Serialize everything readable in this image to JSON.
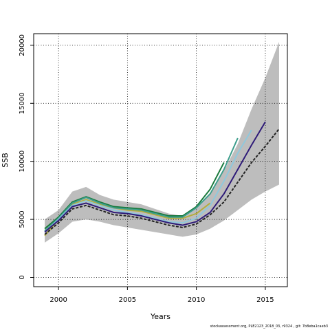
{
  "chart_data": {
    "type": "line",
    "title": "",
    "xlabel": "Years",
    "ylabel": "SSB",
    "xlim": [
      1998.2,
      2016.6
    ],
    "ylim": [
      -800,
      21000
    ],
    "xticks": [
      2000,
      2005,
      2010,
      2015
    ],
    "yticks": [
      0,
      5000,
      10000,
      15000,
      20000
    ],
    "grid": true,
    "confidence_band": {
      "x": [
        1999,
        2000,
        2001,
        2002,
        2003,
        2004,
        2005,
        2006,
        2007,
        2008,
        2009,
        2010,
        2011,
        2012,
        2013,
        2014,
        2015,
        2016
      ],
      "lower": [
        3000,
        3800,
        4800,
        5000,
        4800,
        4500,
        4300,
        4100,
        3900,
        3700,
        3500,
        3700,
        4200,
        4900,
        5800,
        6700,
        7400,
        8000
      ],
      "upper": [
        5000,
        5800,
        7400,
        7800,
        7100,
        6700,
        6500,
        6300,
        5900,
        5500,
        5300,
        6000,
        7300,
        9200,
        11500,
        14500,
        17200,
        20300
      ]
    },
    "series": [
      {
        "color": "#1b7a3d",
        "style": "solid",
        "x": [
          1999,
          2000,
          2001,
          2002,
          2003,
          2004,
          2005,
          2006,
          2007,
          2008,
          2009,
          2010,
          2011,
          2012
        ],
        "values": [
          4200,
          5200,
          6500,
          6950,
          6500,
          6100,
          6000,
          5900,
          5600,
          5300,
          5300,
          6100,
          7600,
          9900
        ]
      },
      {
        "color": "#b3ad3d",
        "style": "solid",
        "x": [
          1999,
          2000,
          2001,
          2002,
          2003,
          2004,
          2005,
          2006,
          2007,
          2008,
          2009,
          2010,
          2011
        ],
        "values": [
          3600,
          5000,
          6300,
          6700,
          6300,
          6000,
          5800,
          5700,
          5400,
          5100,
          5100,
          5500,
          6400
        ]
      },
      {
        "color": "#3d9e8c",
        "style": "solid",
        "x": [
          1999,
          2000,
          2001,
          2002,
          2003,
          2004,
          2005,
          2006,
          2007,
          2008,
          2009,
          2010,
          2011,
          2012,
          2013
        ],
        "values": [
          4000,
          5100,
          6400,
          6900,
          6400,
          6000,
          5900,
          5800,
          5500,
          5200,
          5200,
          6000,
          7200,
          9300,
          12000
        ]
      },
      {
        "color": "#8fc8dc",
        "style": "solid",
        "x": [
          1999,
          2000,
          2001,
          2002,
          2003,
          2004,
          2005,
          2006,
          2007,
          2008,
          2009,
          2010,
          2011,
          2012,
          2013,
          2014
        ],
        "values": [
          3900,
          5000,
          6200,
          6600,
          6200,
          5800,
          5600,
          5400,
          5100,
          4800,
          4700,
          5100,
          6200,
          8300,
          10700,
          12700
        ]
      },
      {
        "color": "#2e1a78",
        "style": "solid",
        "x": [
          1999,
          2000,
          2001,
          2002,
          2003,
          2004,
          2005,
          2006,
          2007,
          2008,
          2009,
          2010,
          2011,
          2012,
          2013,
          2014,
          2015
        ],
        "values": [
          3900,
          4900,
          6100,
          6400,
          6000,
          5600,
          5500,
          5300,
          5000,
          4700,
          4500,
          4800,
          5600,
          7200,
          9300,
          11400,
          13400
        ]
      },
      {
        "color": "#222222",
        "style": "dashed",
        "x": [
          1999,
          2000,
          2001,
          2002,
          2003,
          2004,
          2005,
          2006,
          2007,
          2008,
          2009,
          2010,
          2011,
          2012,
          2013,
          2014,
          2015,
          2016
        ],
        "values": [
          3700,
          4700,
          5900,
          6200,
          5800,
          5400,
          5300,
          5100,
          4800,
          4500,
          4300,
          4600,
          5400,
          6500,
          8200,
          9900,
          11300,
          12800
        ]
      }
    ]
  },
  "footnote": "stockassessment.org, PLE2123_2018_03, r9324 , git: 7b8eba1caeb3"
}
